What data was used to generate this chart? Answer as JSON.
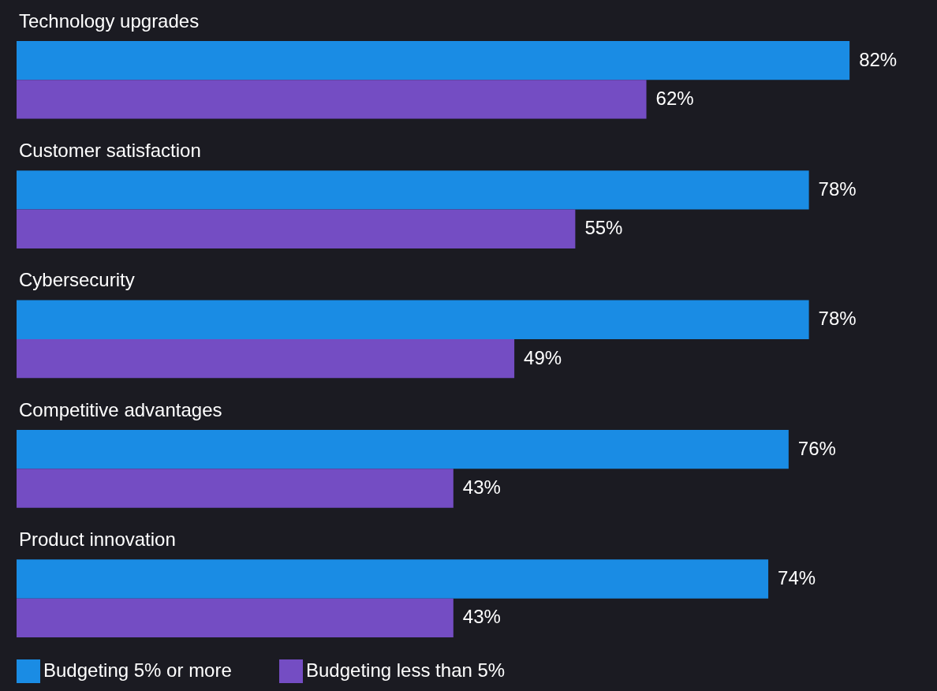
{
  "chart_data": {
    "type": "bar",
    "orientation": "horizontal",
    "legend": "bottom",
    "categories": [
      "Technology upgrades",
      "Customer satisfaction",
      "Cybersecurity",
      "Competitive advantages",
      "Product innovation"
    ],
    "series": [
      {
        "name": "Budgeting 5% or more",
        "color": "#1a8ce4",
        "values": [
          82,
          78,
          78,
          76,
          74
        ],
        "value_labels": [
          "82%",
          "78%",
          "78%",
          "76%",
          "74%"
        ]
      },
      {
        "name": "Budgeting less than 5%",
        "color": "#744dc3",
        "values": [
          62,
          55,
          49,
          43,
          43
        ],
        "value_labels": [
          "62%",
          "55%",
          "49%",
          "43%",
          "43%"
        ]
      }
    ]
  }
}
